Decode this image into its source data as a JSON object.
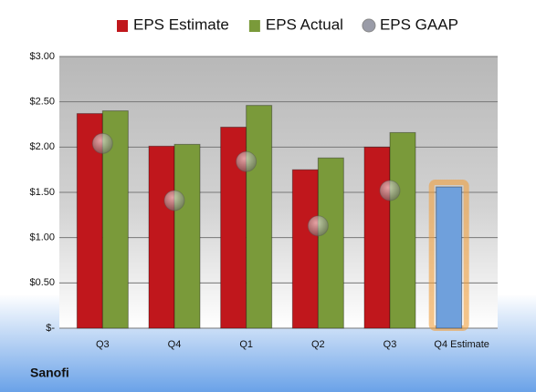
{
  "chart_data": {
    "type": "bar",
    "title": "Sanofi",
    "categories": [
      "Q3",
      "Q4",
      "Q1",
      "Q2",
      "Q3",
      "Q4 Estimate"
    ],
    "series": [
      {
        "name": "EPS Estimate",
        "color": "#c0171c",
        "colors": [
          "#c0171c",
          "#c0171c",
          "#c0171c",
          "#c0171c",
          "#c0171c",
          "#6fa0dc"
        ],
        "values": [
          2.37,
          2.01,
          2.22,
          1.75,
          2.0,
          1.56
        ]
      },
      {
        "name": "EPS Actual",
        "color": "#7a9a3a",
        "values": [
          2.4,
          2.03,
          2.46,
          1.88,
          2.16,
          null
        ]
      },
      {
        "name": "EPS GAAP",
        "color": "#9a9ca8",
        "marker": "circle",
        "values": [
          2.04,
          1.41,
          1.84,
          1.13,
          1.52,
          null
        ]
      }
    ],
    "ylim": [
      0,
      3
    ],
    "yticks": [
      {
        "value": 0,
        "label": "$-"
      },
      {
        "value": 0.5,
        "label": "$0.50"
      },
      {
        "value": 1,
        "label": "$1.00"
      },
      {
        "value": 1.5,
        "label": "$1.50"
      },
      {
        "value": 2,
        "label": "$2.00"
      },
      {
        "value": 2.5,
        "label": "$2.50"
      },
      {
        "value": 3,
        "label": "$3.00"
      }
    ],
    "grid": true,
    "legend": "top"
  }
}
